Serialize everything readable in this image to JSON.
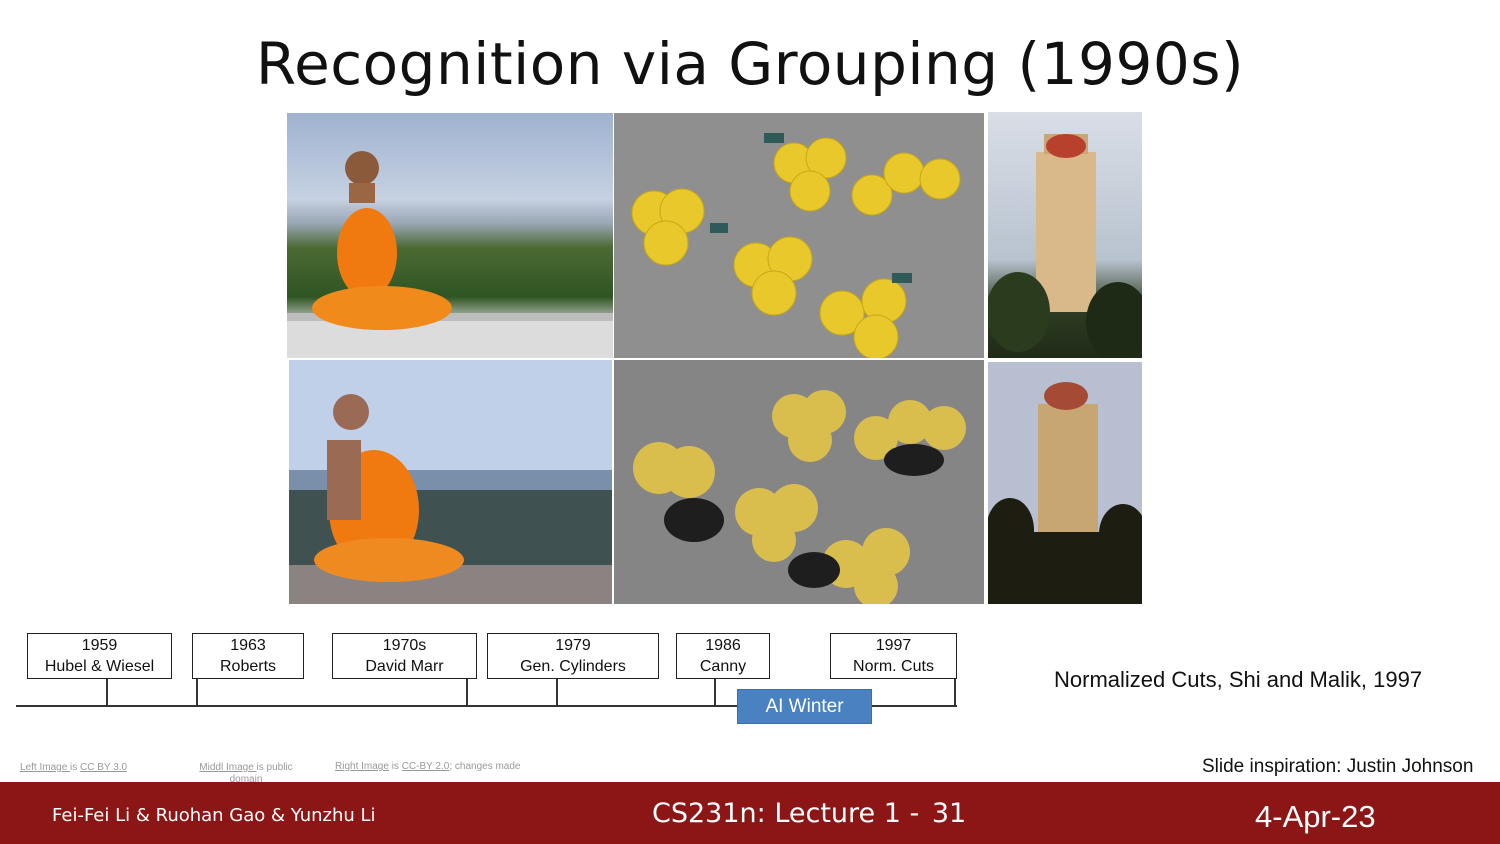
{
  "slide": {
    "title": "Recognition via Grouping (1990s)",
    "caption": "Normalized Cuts, Shi and Malik, 1997",
    "inspiration": "Slide inspiration: Justin Johnson"
  },
  "timeline": {
    "events": [
      {
        "year": "1959",
        "label": "Hubel & Wiesel"
      },
      {
        "year": "1963",
        "label": "Roberts"
      },
      {
        "year": "1970s",
        "label": "David Marr"
      },
      {
        "year": "1979",
        "label": "Gen. Cylinders"
      },
      {
        "year": "1986",
        "label": "Canny"
      },
      {
        "year": "1997",
        "label": "Norm. Cuts"
      }
    ],
    "ai_winter": "AI Winter"
  },
  "credits": {
    "left": {
      "link": "Left Image ",
      "sep": " is ",
      "license": "CC BY 3.0"
    },
    "middle": {
      "link": "Middl Image ",
      "rest": " is public domain"
    },
    "right": {
      "link": "Right Image",
      "sep": " is ",
      "license": "CC-BY 2.0",
      "rest": "; changes made"
    }
  },
  "footer": {
    "authors": "Fei-Fei Li & Ruohan Gao & Yunzhu Li",
    "lecture": "CS231n: Lecture 1 -",
    "slide_number": "31",
    "date": "4-Apr-23"
  },
  "colors": {
    "footer_bg": "#8c1515",
    "ai_winter_bg": "#4a81c0"
  }
}
